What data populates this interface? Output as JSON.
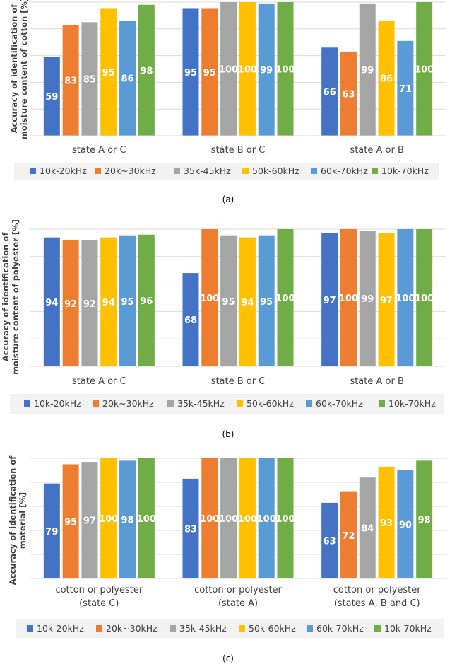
{
  "colors": {
    "series": [
      "#4472C4",
      "#ED7D31",
      "#A5A5A5",
      "#FFC000",
      "#5B9BD5",
      "#70AD47"
    ],
    "grid": "#D9D9D9",
    "legend_bg": "#F2F2F2"
  },
  "chart_data": [
    {
      "type": "bar",
      "caption": "(a)",
      "ylabel": [
        "Accuracy of identification of",
        "moisture content of cotton [%]"
      ],
      "categories": [
        [
          "state A or C"
        ],
        [
          "state B or C"
        ],
        [
          "state A or B"
        ]
      ],
      "ylim": [
        0,
        100
      ],
      "grid": true,
      "legend_position": "bottom",
      "series": [
        {
          "name": "10k-20kHz",
          "values": [
            59,
            95,
            66
          ]
        },
        {
          "name": "20k~30kHz",
          "values": [
            83,
            95,
            63
          ]
        },
        {
          "name": "35k-45kHz",
          "values": [
            85,
            100,
            99
          ]
        },
        {
          "name": "50k-60kHz",
          "values": [
            95,
            100,
            86
          ]
        },
        {
          "name": "60k-70kHz",
          "values": [
            86,
            99,
            71
          ]
        },
        {
          "name": "10k-70kHz",
          "values": [
            98,
            100,
            100
          ]
        }
      ]
    },
    {
      "type": "bar",
      "caption": "(b)",
      "ylabel": [
        "Accuracy of identification of",
        "moisture content of polyester [%]"
      ],
      "categories": [
        [
          "state A or C"
        ],
        [
          "state B or C"
        ],
        [
          "state A or B"
        ]
      ],
      "ylim": [
        0,
        100
      ],
      "grid": true,
      "legend_position": "bottom",
      "series": [
        {
          "name": "10k-20kHz",
          "values": [
            94,
            68,
            97
          ]
        },
        {
          "name": "20k~30kHz",
          "values": [
            92,
            100,
            100
          ]
        },
        {
          "name": "35k-45kHz",
          "values": [
            92,
            95,
            99
          ]
        },
        {
          "name": "50k-60kHz",
          "values": [
            94,
            94,
            97
          ]
        },
        {
          "name": "60k-70kHz",
          "values": [
            95,
            95,
            100
          ]
        },
        {
          "name": "10k-70kHz",
          "values": [
            96,
            100,
            100
          ]
        }
      ]
    },
    {
      "type": "bar",
      "caption": "(c)",
      "ylabel": [
        "Accuracy of identification of",
        "material [%]"
      ],
      "categories": [
        [
          "cotton or polyester",
          "(state C)"
        ],
        [
          "cotton or polyester",
          "(state A)"
        ],
        [
          "cotton or polyester",
          "(states A, B and C)"
        ]
      ],
      "ylim": [
        0,
        100
      ],
      "grid": true,
      "legend_position": "bottom",
      "series": [
        {
          "name": "10k-20kHz",
          "values": [
            79,
            83,
            63
          ]
        },
        {
          "name": "20k~30kHz",
          "values": [
            95,
            100,
            72
          ]
        },
        {
          "name": "35k-45kHz",
          "values": [
            97,
            100,
            84
          ]
        },
        {
          "name": "50k-60kHz",
          "values": [
            100,
            100,
            93
          ]
        },
        {
          "name": "60k-70kHz",
          "values": [
            98,
            100,
            90
          ]
        },
        {
          "name": "10k-70kHz",
          "values": [
            100,
            100,
            98
          ]
        }
      ]
    }
  ]
}
